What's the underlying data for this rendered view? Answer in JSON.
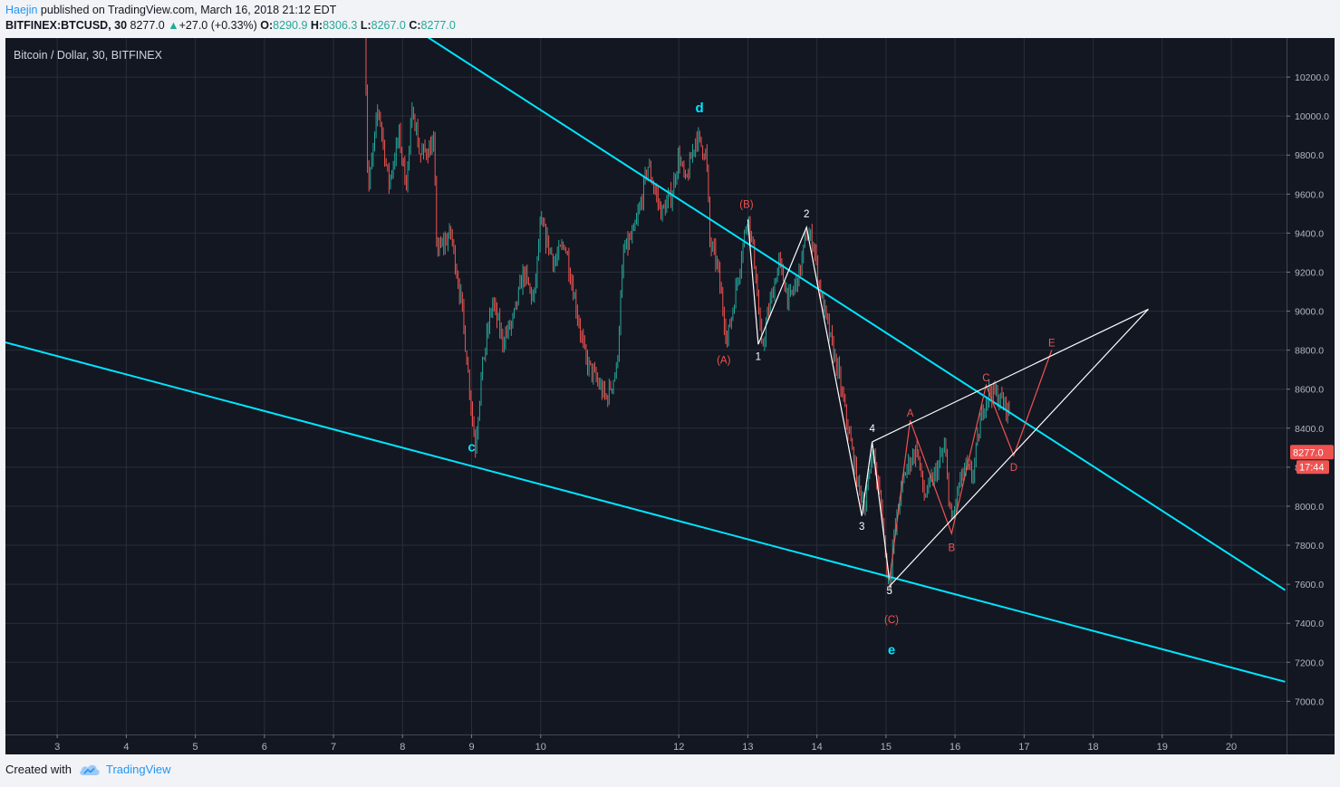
{
  "header": {
    "author": "Haejin",
    "published": "published on TradingView.com, March 16, 2018 21:12 EDT",
    "symbol": "BITFINEX:BTCUSD, 30",
    "last": "8277.0",
    "change": "+27.0 (+0.33%)",
    "o_label": "O:",
    "o": "8290.9",
    "h_label": "H:",
    "h": "8306.3",
    "l_label": "L:",
    "l": "8267.0",
    "c_label": "C:",
    "c": "8277.0"
  },
  "footer": {
    "created_with": "Created with",
    "brand": "TradingView"
  },
  "colors": {
    "background": "#131722",
    "grid": "#2a2e39",
    "up": "#26a69a",
    "down": "#ef5350",
    "trendline": "#00e5ff",
    "wave_white": "#ffffff",
    "wave_red": "#ef5350",
    "price_tag": "#ef5350"
  },
  "chart_data": {
    "type": "candlestick",
    "title": "Bitcoin / Dollar, 30, BITFINEX",
    "symbol": "BITFINEX:BTCUSD",
    "timeframe": "30",
    "x_ticks": [
      "3",
      "4",
      "5",
      "6",
      "7",
      "8",
      "9",
      "10",
      "12",
      "13",
      "14",
      "15",
      "16",
      "17",
      "18",
      "19",
      "20"
    ],
    "x_tick_days": [
      3,
      4,
      5,
      6,
      7,
      8,
      9,
      10,
      12,
      13,
      14,
      15,
      16,
      17,
      18,
      19,
      20
    ],
    "y_ticks": [
      7000,
      7200,
      7400,
      7600,
      7800,
      8000,
      8200,
      8400,
      8600,
      8800,
      9000,
      9200,
      9400,
      9600,
      9800,
      10000,
      10200
    ],
    "y_tick_labels": [
      "7000.0",
      "7200.0",
      "7400.0",
      "7600.0",
      "7800.0",
      "8000.0",
      "8200.0",
      "8400.0",
      "8600.0",
      "8800.0",
      "9000.0",
      "9200.0",
      "9400.0",
      "9600.0",
      "9800.0",
      "10000.0",
      "10200.0"
    ],
    "ylim": [
      6830,
      10400
    ],
    "xlim": [
      2.25,
      20.8
    ],
    "grid": true,
    "last_price": "8277.0",
    "countdown": "17:44",
    "price_path": [
      [
        7.45,
        10550
      ],
      [
        7.5,
        9600
      ],
      [
        7.65,
        10050
      ],
      [
        7.8,
        9650
      ],
      [
        7.95,
        9900
      ],
      [
        8.05,
        9650
      ],
      [
        8.15,
        10050
      ],
      [
        8.25,
        9800
      ],
      [
        8.45,
        9850
      ],
      [
        8.5,
        9300
      ],
      [
        8.7,
        9400
      ],
      [
        8.85,
        9050
      ],
      [
        9.0,
        8500
      ],
      [
        9.05,
        8300
      ],
      [
        9.15,
        8700
      ],
      [
        9.3,
        9050
      ],
      [
        9.45,
        8850
      ],
      [
        9.6,
        8950
      ],
      [
        9.75,
        9200
      ],
      [
        9.9,
        9050
      ],
      [
        10.0,
        9450
      ],
      [
        10.2,
        9250
      ],
      [
        10.35,
        9350
      ],
      [
        10.5,
        9050
      ],
      [
        10.65,
        8750
      ],
      [
        10.8,
        8650
      ],
      [
        10.95,
        8550
      ],
      [
        11.1,
        8700
      ],
      [
        11.2,
        9300
      ],
      [
        11.35,
        9400
      ],
      [
        11.45,
        9550
      ],
      [
        11.55,
        9750
      ],
      [
        11.75,
        9500
      ],
      [
        11.9,
        9600
      ],
      [
        12.0,
        9800
      ],
      [
        12.1,
        9650
      ],
      [
        12.25,
        9900
      ],
      [
        12.4,
        9800
      ],
      [
        12.45,
        9350
      ],
      [
        12.55,
        9250
      ],
      [
        12.7,
        8850
      ],
      [
        12.8,
        9050
      ],
      [
        13.0,
        9500
      ],
      [
        13.1,
        9250
      ],
      [
        13.2,
        8800
      ],
      [
        13.3,
        9000
      ],
      [
        13.45,
        9250
      ],
      [
        13.6,
        9050
      ],
      [
        13.75,
        9200
      ],
      [
        13.85,
        9400
      ],
      [
        13.95,
        9350
      ],
      [
        14.05,
        9100
      ],
      [
        14.2,
        8850
      ],
      [
        14.3,
        8700
      ],
      [
        14.45,
        8400
      ],
      [
        14.6,
        8100
      ],
      [
        14.7,
        8000
      ],
      [
        14.8,
        8300
      ],
      [
        14.95,
        7950
      ],
      [
        15.0,
        7700
      ],
      [
        15.05,
        7600
      ],
      [
        15.1,
        7800
      ],
      [
        15.2,
        8050
      ],
      [
        15.3,
        8200
      ],
      [
        15.45,
        8300
      ],
      [
        15.55,
        8050
      ],
      [
        15.7,
        8150
      ],
      [
        15.85,
        8300
      ],
      [
        15.95,
        7900
      ],
      [
        16.05,
        8100
      ],
      [
        16.15,
        8200
      ],
      [
        16.25,
        8150
      ],
      [
        16.4,
        8500
      ],
      [
        16.5,
        8600
      ],
      [
        16.65,
        8550
      ],
      [
        16.8,
        8480
      ]
    ],
    "trendlines": [
      {
        "name": "upper",
        "from": [
          8.12,
          10460
        ],
        "to": [
          20.78,
          7570
        ]
      },
      {
        "name": "lower",
        "from": [
          2.25,
          8840
        ],
        "to": [
          20.78,
          7100
        ]
      }
    ],
    "wave_labels": [
      {
        "text": "c",
        "x": 9.0,
        "y": 8280,
        "color": "cyan"
      },
      {
        "text": "d",
        "x": 12.3,
        "y": 10020,
        "color": "cyan"
      },
      {
        "text": "e",
        "x": 15.08,
        "y": 7240,
        "color": "cyan"
      },
      {
        "text": "(A)",
        "x": 12.65,
        "y": 8730,
        "color": "red"
      },
      {
        "text": "(B)",
        "x": 12.98,
        "y": 9530,
        "color": "red"
      },
      {
        "text": "(C)",
        "x": 15.08,
        "y": 7400,
        "color": "red"
      },
      {
        "text": "1",
        "x": 13.15,
        "y": 8750,
        "color": "white"
      },
      {
        "text": "2",
        "x": 13.85,
        "y": 9480,
        "color": "white"
      },
      {
        "text": "3",
        "x": 14.65,
        "y": 7880,
        "color": "white"
      },
      {
        "text": "4",
        "x": 14.8,
        "y": 8380,
        "color": "white"
      },
      {
        "text": "5",
        "x": 15.05,
        "y": 7550,
        "color": "white"
      },
      {
        "text": "A",
        "x": 15.35,
        "y": 8460,
        "color": "red"
      },
      {
        "text": "B",
        "x": 15.95,
        "y": 7770,
        "color": "red"
      },
      {
        "text": "C",
        "x": 16.45,
        "y": 8640,
        "color": "red"
      },
      {
        "text": "D",
        "x": 16.85,
        "y": 8180,
        "color": "red"
      },
      {
        "text": "E",
        "x": 17.4,
        "y": 8820,
        "color": "red"
      }
    ],
    "wave_paths": [
      {
        "color": "white",
        "points": [
          [
            13.0,
            9470
          ],
          [
            13.15,
            8830
          ],
          [
            13.85,
            9430
          ],
          [
            14.65,
            7950
          ],
          [
            14.8,
            8330
          ],
          [
            15.05,
            7620
          ]
        ]
      },
      {
        "color": "red",
        "points": [
          [
            15.05,
            7620
          ],
          [
            15.35,
            8440
          ],
          [
            15.95,
            7860
          ],
          [
            16.45,
            8620
          ],
          [
            16.85,
            8260
          ],
          [
            17.4,
            8800
          ]
        ]
      },
      {
        "color": "white",
        "points": [
          [
            14.8,
            8330
          ],
          [
            18.8,
            9010
          ]
        ]
      },
      {
        "color": "white",
        "points": [
          [
            15.05,
            7590
          ],
          [
            18.8,
            9010
          ]
        ]
      }
    ]
  }
}
